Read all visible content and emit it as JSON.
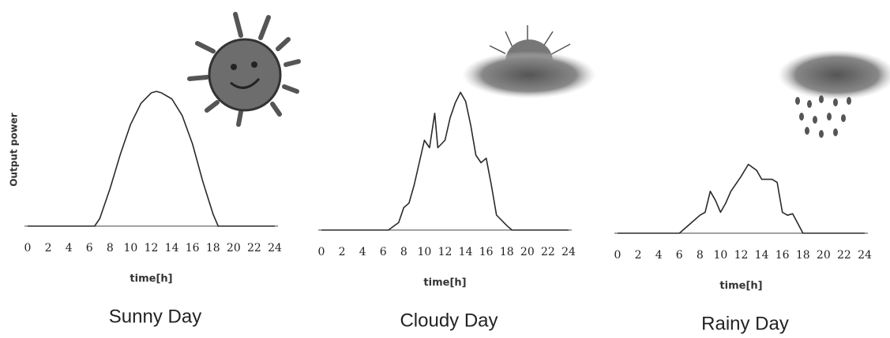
{
  "chart_data": [
    {
      "type": "line",
      "title": "Sunny Day",
      "x_label": "time[h]",
      "y_label": "Output power",
      "color": "#2a2a2a",
      "xlim": [
        0,
        24
      ],
      "xticks": [
        0,
        2,
        4,
        6,
        8,
        10,
        12,
        14,
        16,
        18,
        20,
        22,
        24
      ],
      "ylim": [
        0,
        100
      ],
      "x": [
        0,
        6.5,
        7,
        8,
        9,
        10,
        11,
        12,
        12.5,
        13,
        14,
        15,
        16,
        17,
        18,
        18.5,
        24
      ],
      "values": [
        0,
        0,
        5,
        25,
        48,
        68,
        82,
        89,
        90,
        89,
        85,
        74,
        55,
        30,
        8,
        0,
        0
      ]
    },
    {
      "type": "line",
      "title": "Cloudy Day",
      "x_label": "time[h]",
      "color": "#2a2a2a",
      "xlim": [
        0,
        24
      ],
      "xticks": [
        0,
        2,
        4,
        6,
        8,
        10,
        12,
        14,
        16,
        18,
        20,
        22,
        24
      ],
      "ylim": [
        0,
        100
      ],
      "x": [
        0,
        6.5,
        7.5,
        8,
        8.5,
        9,
        9.5,
        10,
        10.5,
        11,
        11.3,
        12,
        12.5,
        13,
        13.5,
        14,
        14.5,
        15,
        15.5,
        16,
        16.5,
        17,
        18,
        18.5,
        24
      ],
      "values": [
        0,
        0,
        5,
        15,
        18,
        30,
        45,
        60,
        55,
        78,
        55,
        60,
        75,
        85,
        92,
        86,
        70,
        50,
        45,
        48,
        30,
        10,
        3,
        0,
        0
      ]
    },
    {
      "type": "line",
      "title": "Rainy Day",
      "x_label": "time[h]",
      "color": "#2a2a2a",
      "xlim": [
        0,
        24
      ],
      "xticks": [
        0,
        2,
        4,
        6,
        8,
        10,
        12,
        14,
        16,
        18,
        20,
        22,
        24
      ],
      "ylim": [
        0,
        100
      ],
      "x": [
        0,
        6,
        7,
        8,
        8.5,
        9,
        9.5,
        10,
        10.5,
        11,
        12,
        12.7,
        13.5,
        14,
        15,
        15.5,
        16,
        16.5,
        17,
        18,
        24
      ],
      "values": [
        0,
        0,
        6,
        12,
        14,
        28,
        22,
        14,
        20,
        28,
        38,
        46,
        42,
        36,
        36,
        34,
        14,
        12,
        13,
        0,
        0
      ]
    }
  ]
}
